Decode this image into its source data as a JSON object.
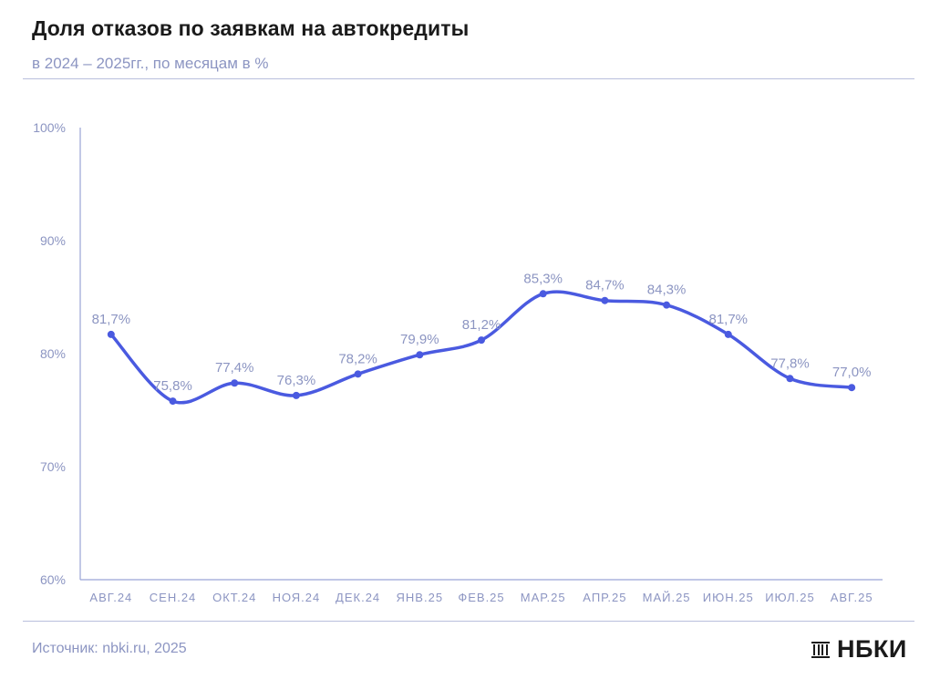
{
  "header": {
    "title": "Доля отказов по заявкам на автокредиты",
    "subtitle": "в 2024 – 2025гг., по месяцам в %"
  },
  "footer": {
    "source": "Источник: nbki.ru, 2025",
    "logo_text": "НБКИ"
  },
  "colors": {
    "line": "#4a5ae0",
    "axis": "#9aa3d6",
    "tick_text": "#8c95c2",
    "label_text": "#8c95c2"
  },
  "chart_data": {
    "type": "line",
    "title": "Доля отказов по заявкам на автокредиты",
    "subtitle": "в 2024 – 2025гг., по месяцам в %",
    "categories": [
      "АВГ.24",
      "СЕН.24",
      "ОКТ.24",
      "НОЯ.24",
      "ДЕК.24",
      "ЯНВ.25",
      "ФЕВ.25",
      "МАР.25",
      "АПР.25",
      "МАЙ.25",
      "ИЮН.25",
      "ИЮЛ.25",
      "АВГ.25"
    ],
    "values": [
      81.7,
      75.8,
      77.4,
      76.3,
      78.2,
      79.9,
      81.2,
      85.3,
      84.7,
      84.3,
      81.7,
      77.8,
      77.0
    ],
    "value_labels": [
      "81,7%",
      "75,8%",
      "77,4%",
      "76,3%",
      "78,2%",
      "79,9%",
      "81,2%",
      "85,3%",
      "84,7%",
      "84,3%",
      "81,7%",
      "77,8%",
      "77,0%"
    ],
    "ylim": [
      60,
      100
    ],
    "yticks": [
      60,
      70,
      80,
      90,
      100
    ],
    "ytick_labels": [
      "60%",
      "70%",
      "80%",
      "90%",
      "100%"
    ],
    "grid": false,
    "legend": "none",
    "smooth": true
  }
}
